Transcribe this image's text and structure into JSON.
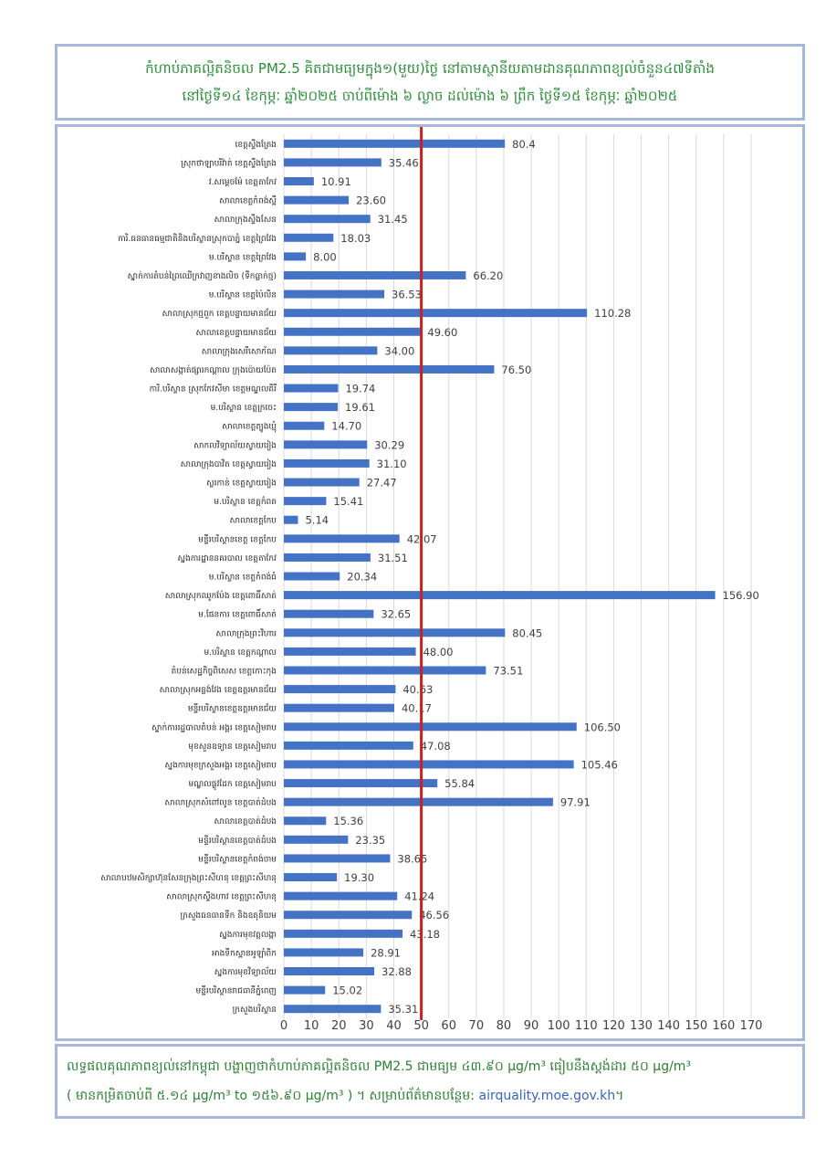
{
  "header": {
    "title_line1": "កំហាប់ភាគល្អិតនិចល PM2.5 គិតជាមធ្យមក្នុង១(មួយ)ថ្ងៃ នៅតាមស្ថានីយតាមដានគុណភាពខ្យល់ចំនួន៤៧ទីតាំង",
    "title_line2": "នៅថ្ងៃទី១៤ ខែកុម្ភៈ ឆ្នាំ២០២៥ ចាប់ពីម៉ោង ៦ ល្ងាច ដល់ម៉ោង ៦ ព្រឹក ថ្ងៃទី១៥ ខែកុម្ភៈ ឆ្នាំ២០២៥"
  },
  "footer": {
    "line1": "លទ្ធផលគុណភាពខ្យល់នៅកម្ពុជា បង្ហាញថាកំហាប់ភាគល្អិតនិចល PM2.5 ជាមធ្យម ៤៣.៩០ µg/m³ ធៀបនឹងស្តង់ដារ ៥០ µg/m³",
    "line2_text": "( មានកម្រិតចាប់ពី ៥.១៤ µg/m³ to ១៥៦.៩០ µg/m³ ) ។ សម្រាប់ព័ត៌មានបន្ថែម: ",
    "line2_link": "airquality.moe.gov.kh",
    "line2_end": "។"
  },
  "colors": {
    "bar": "#4472c4",
    "standard_line": "#cc1f1f",
    "grid": "#d9d9d9",
    "border": "#a7b7d7",
    "title_text": "#2e8b3a"
  },
  "chart_data": {
    "type": "bar",
    "orientation": "horizontal",
    "xlim": [
      0,
      170
    ],
    "xticks": [
      0,
      10,
      20,
      30,
      40,
      50,
      60,
      70,
      80,
      90,
      100,
      110,
      120,
      130,
      140,
      150,
      160,
      170
    ],
    "grid": true,
    "legend": "none",
    "reference_line": 50,
    "categories": [
      "ខេត្តស្ទឹងត្រែង",
      "ស្រុកថាឡាបរិវ៉ាត់ ខេត្តស្ទឹងត្រែង",
      "វ.សម្តេចម៉ែ ខេត្តតាកែវ",
      "សាលាខេត្តកំពង់ស្ពឺ",
      "សាលាក្រុងស្ទឹងសែន",
      "ការិ.ធនធានធម្មជាតិនិងបរិស្ថានស្រុកបាភ្នំ ខេត្តព្រៃវែង",
      "ម.បរិស្ថាន ខេត្តព្រៃវែង",
      "ស្នាក់ការតំបន់ព្រៃឈើក្រវាញខាងលិច (ទឹកធ្លាក់ថ្ម)",
      "ម.បរិស្ថាន ខេត្តប៉ៃលិន",
      "សាលាស្រុកថ្មពួក ខេត្តបន្ទាយមានជ័យ",
      "សាលាខេត្តបន្ទាយមានជ័យ",
      "សាលាក្រុងសេរីសោភ័ណ",
      "សាលាសង្កាត់ផ្សារកណ្ដាល ក្រុងប៉ោយប៉ែត",
      "ការិ.បរិស្ថាន ស្រុកកែវសីមា ខេត្តមណ្ឌលគិរី",
      "ម.បរិស្ថាន ខេត្តក្រចេះ",
      "សាលាខេត្តត្បូងឃ្មុំ",
      "សាកលវិទ្យាល័យស្វាយរៀង",
      "សាលាក្រុងបាវិត ខេត្តស្វាយរៀង",
      "ស្លរកាន់ ខេត្តស្វាយរៀង",
      "ម.បរិស្ថាន ខេត្តកំពត",
      "សាលាខេត្តកែប",
      "មន្ទីរបរិស្ថានខេត្ត ខេត្តកែប",
      "ស្នងការដ្ឋាននគរបាល ខេត្តតាកែវ",
      "ម.បរិស្ថាន ខេត្តកំពង់ធំ",
      "សាលាស្រុកឈូកប៉ែង ខេត្តពោធិ៍សាត់",
      "ម.ផែនការ ខេត្តពោធិ៍សាត់",
      "សាលាក្រុងព្រះវិហារ",
      "ម.បរិស្ថាន ខេត្តកណ្ដាល",
      "តំបន់សេដ្ឋកិច្ចពិសេស ខេត្តកោះកុង",
      "សាលាស្រុកអន្លង់វែង ខេត្តឧត្ដរមានជ័យ",
      "មន្ទីរបរិស្ថានខេត្តឧត្ដរមានជ័យ",
      "ស្នាក់ការរដ្ឋបាលតំបន់ អង្គរ ខេត្តសៀមរាប",
      "មុខសួនឧទ្យាន ខេត្តសៀមរាប",
      "ស្នងការមុខក្រសួងអង្គរ ខេត្តសៀមរាប",
      "មណ្ឌលផ្លូវដែក ខេត្តសៀមរាប",
      "សាលាស្រុកសំពៅលូន ខេត្តបាត់ដំបង",
      "សាលាខេត្តបាត់ដំបង",
      "មន្ទីរបរិស្ថានខេត្តបាត់ដំបង",
      "មន្ទីរបរិស្ថានខេត្តកំពង់ចាម",
      "សាលាបឋមសិក្សាហ៊ុនសែនក្រុងព្រះសីហនុ ខេត្តព្រះសីហនុ",
      "សាលាស្រុកស្ទឹងហាវ ខេត្តព្រះសីហនុ",
      "ក្រសួងធនធានទឹក និងឧតុនិយម",
      "ស្នងការមុខវត្តលង្កា",
      "អាងទឹកស្ពានអូឡាំពិក",
      "ស្នងការមុខវិទ្យាល័យ",
      "មន្ទីរបរិស្ថានរាជធានីភ្នំពេញ",
      "ក្រសួងបរិស្ថាន"
    ],
    "values": [
      80.4,
      35.46,
      10.91,
      23.6,
      31.45,
      18.03,
      8.0,
      66.2,
      36.53,
      110.28,
      49.6,
      34.0,
      76.5,
      19.74,
      19.61,
      14.7,
      30.29,
      31.1,
      27.47,
      15.41,
      5.14,
      42.07,
      31.51,
      20.34,
      156.9,
      32.65,
      80.45,
      48.0,
      73.51,
      40.63,
      40.17,
      106.5,
      47.08,
      105.46,
      55.84,
      97.91,
      15.36,
      23.35,
      38.65,
      19.3,
      41.24,
      46.56,
      43.18,
      28.91,
      32.88,
      15.02,
      35.31
    ],
    "value_labels": [
      "80.4",
      "35.46",
      "10.91",
      "23.60",
      "31.45",
      "18.03",
      "8.00",
      "66.20",
      "36.53",
      "110.28",
      "49.60",
      "34.00",
      "76.50",
      "19.74",
      "19.61",
      "14.70",
      "30.29",
      "31.10",
      "27.47",
      "15.41",
      "5.14",
      "42.07",
      "31.51",
      "20.34",
      "156.90",
      "32.65",
      "80.45",
      "48.00",
      "73.51",
      "40.63",
      "40.17",
      "106.50",
      "47.08",
      "105.46",
      "55.84",
      "97.91",
      "15.36",
      "23.35",
      "38.65",
      "19.30",
      "41.24",
      "46.56",
      "43.18",
      "28.91",
      "32.88",
      "15.02",
      "35.31"
    ]
  }
}
